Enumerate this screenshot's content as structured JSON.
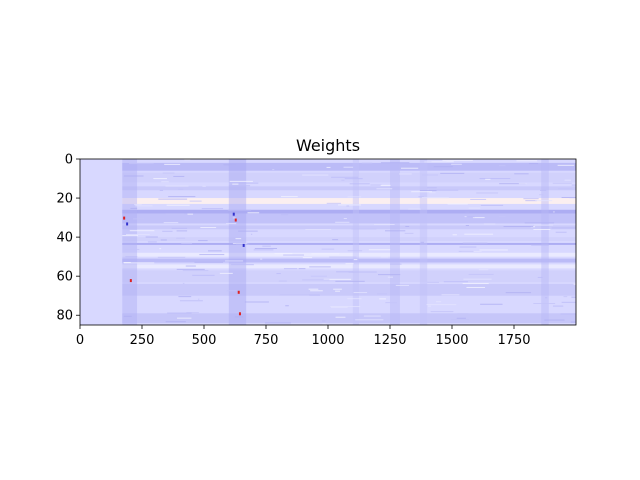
{
  "chart_data": {
    "type": "heatmap",
    "title": "Weights",
    "xlabel": "",
    "ylabel": "",
    "xlim": [
      0,
      2000
    ],
    "ylim": [
      85,
      0
    ],
    "colormap": "bwr",
    "base_color": "#d8d8ff",
    "band_color": "#ffe8e0",
    "accent_blue": "#3333cc",
    "accent_red": "#dd2222",
    "grid": false,
    "legend": "none",
    "x_ticks": [
      {
        "value": 0,
        "label": "0"
      },
      {
        "value": 250,
        "label": "250"
      },
      {
        "value": 500,
        "label": "500"
      },
      {
        "value": 750,
        "label": "750"
      },
      {
        "value": 1000,
        "label": "1000"
      },
      {
        "value": 1250,
        "label": "1250"
      },
      {
        "value": 1500,
        "label": "1500"
      },
      {
        "value": 1750,
        "label": "1750"
      }
    ],
    "y_ticks": [
      {
        "value": 0,
        "label": "0"
      },
      {
        "value": 20,
        "label": "20"
      },
      {
        "value": 40,
        "label": "40"
      },
      {
        "value": 60,
        "label": "60"
      },
      {
        "value": 80,
        "label": "80"
      }
    ],
    "row_bands": [
      {
        "y0": 2,
        "y1": 6,
        "color": "#b8b8f6"
      },
      {
        "y0": 7,
        "y1": 12,
        "color": "#d0d0fc"
      },
      {
        "y0": 14,
        "y1": 16,
        "color": "#c8c8fa"
      },
      {
        "y0": 20,
        "y1": 23,
        "color": "#fff2ee"
      },
      {
        "y0": 26,
        "y1": 28,
        "color": "#a8a8f2"
      },
      {
        "y0": 28,
        "y1": 33,
        "color": "#c0c0f8"
      },
      {
        "y0": 34,
        "y1": 36,
        "color": "#c8c8fa"
      },
      {
        "y0": 40,
        "y1": 42,
        "color": "#d0d0fc"
      },
      {
        "y0": 43,
        "y1": 44,
        "color": "#a8a8f2"
      },
      {
        "y0": 48,
        "y1": 50,
        "color": "#ececff"
      },
      {
        "y0": 51,
        "y1": 53,
        "color": "#b8b8f6"
      },
      {
        "y0": 54,
        "y1": 56,
        "color": "#ececff"
      },
      {
        "y0": 57,
        "y1": 63,
        "color": "#d0d0fc"
      },
      {
        "y0": 64,
        "y1": 70,
        "color": "#c8c8fa"
      },
      {
        "y0": 71,
        "y1": 78,
        "color": "#d8d8ff"
      },
      {
        "y0": 79,
        "y1": 84,
        "color": "#c4c4f8"
      }
    ],
    "col_bands": [
      {
        "x0": 170,
        "x1": 230,
        "color": "#b0b0f4"
      },
      {
        "x0": 600,
        "x1": 670,
        "color": "#a8a8f2"
      },
      {
        "x0": 1100,
        "x1": 1125,
        "color": "#c0c0f8"
      },
      {
        "x0": 1250,
        "x1": 1290,
        "color": "#b8b8f6"
      },
      {
        "x0": 1370,
        "x1": 1400,
        "color": "#c0c0f8"
      },
      {
        "x0": 1860,
        "x1": 1890,
        "color": "#b8b8f6"
      }
    ],
    "hotspots": [
      {
        "x": 178,
        "y": 30,
        "color": "#dd2222"
      },
      {
        "x": 190,
        "y": 33,
        "color": "#3333cc"
      },
      {
        "x": 205,
        "y": 62,
        "color": "#dd2222"
      },
      {
        "x": 620,
        "y": 28,
        "color": "#3333cc"
      },
      {
        "x": 628,
        "y": 31,
        "color": "#dd2222"
      },
      {
        "x": 640,
        "y": 68,
        "color": "#dd2222"
      },
      {
        "x": 645,
        "y": 79,
        "color": "#dd2222"
      },
      {
        "x": 660,
        "y": 44,
        "color": "#3333cc"
      }
    ],
    "x_data_start": 170
  }
}
